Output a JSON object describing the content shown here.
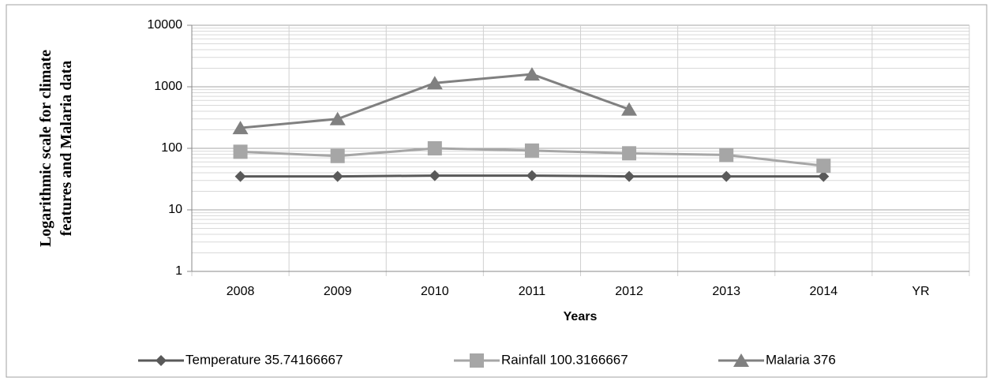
{
  "chart_data": {
    "type": "line",
    "y_label": "Logarithmic scale for climate features and Malaria data",
    "x_label": "Years",
    "categories": [
      "2008",
      "2009",
      "2010",
      "2011",
      "2012",
      "2013",
      "2014",
      "YR"
    ],
    "series": [
      {
        "name": "Temperature 35.74166667",
        "color": "#595959",
        "marker": "diamond",
        "values": [
          35,
          35,
          36,
          36,
          35,
          35,
          35,
          null
        ]
      },
      {
        "name": "Rainfall 100.3166667",
        "color": "#a6a6a6",
        "marker": "square",
        "values": [
          88,
          75,
          100,
          92,
          83,
          78,
          52,
          null
        ]
      },
      {
        "name": "Malaria 376",
        "color": "#808080",
        "marker": "triangle",
        "values": [
          215,
          300,
          1150,
          1600,
          430,
          null,
          null,
          null
        ]
      }
    ],
    "ylim": [
      1,
      10000
    ],
    "yticks": [
      1,
      10,
      100,
      1000,
      10000
    ],
    "log_scale": true,
    "grid": true,
    "legend": "bottom"
  }
}
